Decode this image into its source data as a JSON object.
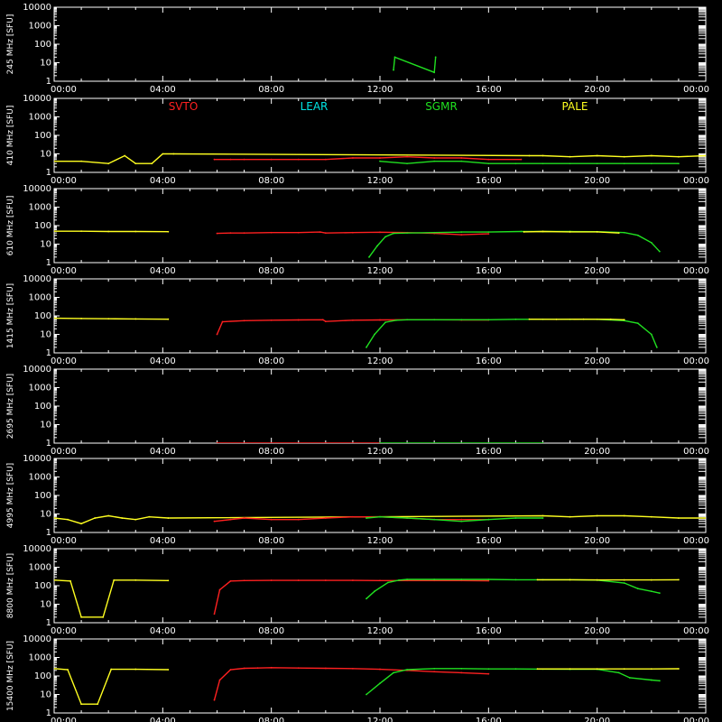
{
  "chart_data": {
    "type": "scatter",
    "x_ticks": [
      "00:00",
      "04:00",
      "08:00",
      "12:00",
      "16:00",
      "20:00",
      "00:00"
    ],
    "y_ticks": [
      "1",
      "10",
      "100",
      "1000",
      "10000"
    ],
    "y_scale": "log",
    "ylim": [
      1,
      10000
    ],
    "xlim_hours": [
      0,
      24
    ],
    "stations": [
      {
        "name": "SVTO",
        "color": "#ff2020"
      },
      {
        "name": "LEAR",
        "color": "#00e5e5"
      },
      {
        "name": "SGMR",
        "color": "#20e020"
      },
      {
        "name": "PALE",
        "color": "#ffff20"
      }
    ],
    "panels": [
      {
        "ylabel": "245 MHz [SFU]",
        "series": [
          {
            "station": "SGMR",
            "x": [
              12.5,
              12.55,
              14.0,
              14.05
            ],
            "y": [
              4,
              20,
              3,
              20
            ]
          }
        ]
      },
      {
        "ylabel": "410 MHz [SFU]",
        "legend": true,
        "series": [
          {
            "station": "PALE",
            "x": [
              0,
              1,
              2,
              2.6,
              3.0,
              3.6,
              4.0,
              4.4,
              17.5,
              18,
              19,
              20,
              21,
              22,
              23,
              24
            ],
            "y": [
              4,
              4,
              3,
              8,
              3,
              3,
              10,
              10,
              8,
              8,
              7,
              8,
              7,
              8,
              7,
              8
            ]
          },
          {
            "station": "SVTO",
            "x": [
              5.9,
              6.5,
              7,
              8,
              9,
              10,
              11,
              12,
              13,
              14,
              15,
              16,
              17.2
            ],
            "y": [
              5,
              5,
              5,
              5,
              5,
              5,
              6,
              6,
              7,
              6,
              6,
              5,
              5
            ]
          },
          {
            "station": "SGMR",
            "x": [
              12,
              13,
              14,
              15,
              16,
              17,
              18,
              19,
              20,
              21,
              22,
              23
            ],
            "y": [
              4,
              3,
              4,
              4,
              3,
              3,
              3,
              3,
              3,
              3,
              3,
              3
            ]
          }
        ]
      },
      {
        "ylabel": "610 MHz [SFU]",
        "series": [
          {
            "station": "PALE",
            "x": [
              0,
              1,
              2,
              3,
              4.2
            ],
            "y": [
              50,
              50,
              48,
              48,
              47
            ]
          },
          {
            "station": "SVTO",
            "x": [
              6.0,
              6.5,
              7,
              8,
              9,
              9.8,
              10,
              11,
              12,
              13,
              14,
              15,
              16.0
            ],
            "y": [
              38,
              40,
              40,
              42,
              42,
              45,
              40,
              42,
              44,
              42,
              38,
              32,
              36
            ]
          },
          {
            "station": "SGMR",
            "x": [
              11.6,
              11.9,
              12.2,
              12.5,
              13,
              14,
              15,
              16,
              17.2,
              18,
              19,
              20,
              21,
              21.5,
              22,
              22.3
            ],
            "y": [
              2,
              8,
              25,
              38,
              40,
              42,
              45,
              45,
              48,
              48,
              48,
              47,
              42,
              30,
              12,
              4
            ]
          },
          {
            "station": "PALE",
            "x": [
              17.3,
              18,
              19,
              20,
              20.8
            ],
            "y": [
              46,
              48,
              46,
              46,
              40
            ]
          }
        ]
      },
      {
        "ylabel": "1415 MHz [SFU]",
        "series": [
          {
            "station": "PALE",
            "x": [
              0,
              1,
              2,
              3,
              4.2
            ],
            "y": [
              75,
              72,
              70,
              68,
              66
            ]
          },
          {
            "station": "SVTO",
            "x": [
              6.0,
              6.2,
              7,
              8,
              9,
              9.9,
              10,
              11,
              12,
              13,
              14,
              15,
              16.0
            ],
            "y": [
              10,
              48,
              55,
              58,
              60,
              62,
              50,
              58,
              60,
              62,
              62,
              60,
              60
            ]
          },
          {
            "station": "SGMR",
            "x": [
              11.5,
              11.8,
              12.2,
              12.6,
              13,
              14,
              15,
              16,
              17,
              18,
              19,
              20,
              21,
              21.5,
              22.0,
              22.2
            ],
            "y": [
              2,
              10,
              45,
              58,
              62,
              62,
              62,
              62,
              65,
              65,
              65,
              65,
              55,
              40,
              10,
              2
            ]
          },
          {
            "station": "PALE",
            "x": [
              17.5,
              18.5,
              19.5,
              20.5,
              21
            ],
            "y": [
              66,
              65,
              66,
              65,
              62
            ]
          }
        ]
      },
      {
        "ylabel": "2695 MHz [SFU]",
        "series": [
          {
            "station": "SVTO",
            "x": [
              6,
              8,
              10,
              12
            ],
            "y": [
              1,
              1,
              1,
              1
            ]
          },
          {
            "station": "SGMR",
            "x": [
              12,
              14,
              16,
              18
            ],
            "y": [
              1,
              1,
              1,
              1
            ]
          }
        ]
      },
      {
        "ylabel": "4995 MHz [SFU]",
        "series": [
          {
            "station": "PALE",
            "x": [
              0,
              0.5,
              1,
              1.5,
              2,
              2.5,
              3,
              3.5,
              4.2,
              18,
              19,
              20,
              21,
              22,
              23,
              24
            ],
            "y": [
              6,
              5,
              3,
              6,
              8,
              6,
              5,
              7,
              6,
              8,
              7,
              8,
              8,
              7,
              6,
              6
            ]
          },
          {
            "station": "SVTO",
            "x": [
              5.9,
              6.5,
              7,
              8,
              9,
              10,
              11,
              12,
              13,
              14,
              15,
              16
            ],
            "y": [
              4,
              5,
              6,
              5,
              5,
              6,
              7,
              7,
              6,
              5,
              5,
              5
            ]
          },
          {
            "station": "SGMR",
            "x": [
              11.5,
              12,
              13,
              14,
              15,
              16,
              17,
              18
            ],
            "y": [
              6,
              7,
              6,
              5,
              4,
              5,
              6,
              6
            ]
          }
        ]
      },
      {
        "ylabel": "8800 MHz [SFU]",
        "series": [
          {
            "station": "PALE",
            "x": [
              0,
              0.6,
              1.0,
              1.8,
              2.2,
              3,
              4.2
            ],
            "y": [
              200,
              180,
              2,
              2,
              200,
              200,
              190
            ]
          },
          {
            "station": "SVTO",
            "x": [
              5.9,
              6.1,
              6.5,
              7,
              8,
              9,
              10,
              11,
              12,
              13,
              14,
              15,
              16
            ],
            "y": [
              3,
              60,
              180,
              190,
              195,
              195,
              195,
              195,
              190,
              190,
              190,
              190,
              185
            ]
          },
          {
            "station": "SGMR",
            "x": [
              11.5,
              11.8,
              12.3,
              12.7,
              13,
              14,
              15,
              16,
              17,
              18,
              19,
              20,
              21,
              21.5,
              22,
              22.3
            ],
            "y": [
              20,
              50,
              150,
              200,
              220,
              220,
              220,
              220,
              210,
              210,
              210,
              200,
              140,
              70,
              50,
              40
            ]
          },
          {
            "station": "PALE",
            "x": [
              17.8,
              19,
              20,
              21,
              22,
              23
            ],
            "y": [
              210,
              210,
              205,
              205,
              205,
              210
            ]
          }
        ]
      },
      {
        "ylabel": "15400 MHz [SFU]",
        "series": [
          {
            "station": "PALE",
            "x": [
              0,
              0.5,
              1.0,
              1.6,
              2.1,
              3,
              4.2
            ],
            "y": [
              250,
              220,
              3,
              3,
              230,
              230,
              220
            ]
          },
          {
            "station": "SVTO",
            "x": [
              5.9,
              6.1,
              6.5,
              7,
              7.5,
              8,
              9,
              10,
              11,
              12,
              13,
              14,
              15,
              16
            ],
            "y": [
              5,
              60,
              220,
              260,
              270,
              280,
              270,
              260,
              250,
              230,
              200,
              170,
              150,
              130
            ]
          },
          {
            "station": "SGMR",
            "x": [
              11.5,
              12,
              12.5,
              13,
              14,
              15,
              16,
              17,
              18,
              19,
              20,
              20.8,
              21.2,
              22,
              22.3
            ],
            "y": [
              10,
              40,
              150,
              220,
              250,
              250,
              240,
              240,
              235,
              230,
              230,
              150,
              80,
              60,
              55
            ]
          },
          {
            "station": "PALE",
            "x": [
              17.8,
              19,
              20,
              21,
              22,
              23
            ],
            "y": [
              240,
              240,
              240,
              240,
              240,
              245
            ]
          }
        ]
      }
    ]
  }
}
